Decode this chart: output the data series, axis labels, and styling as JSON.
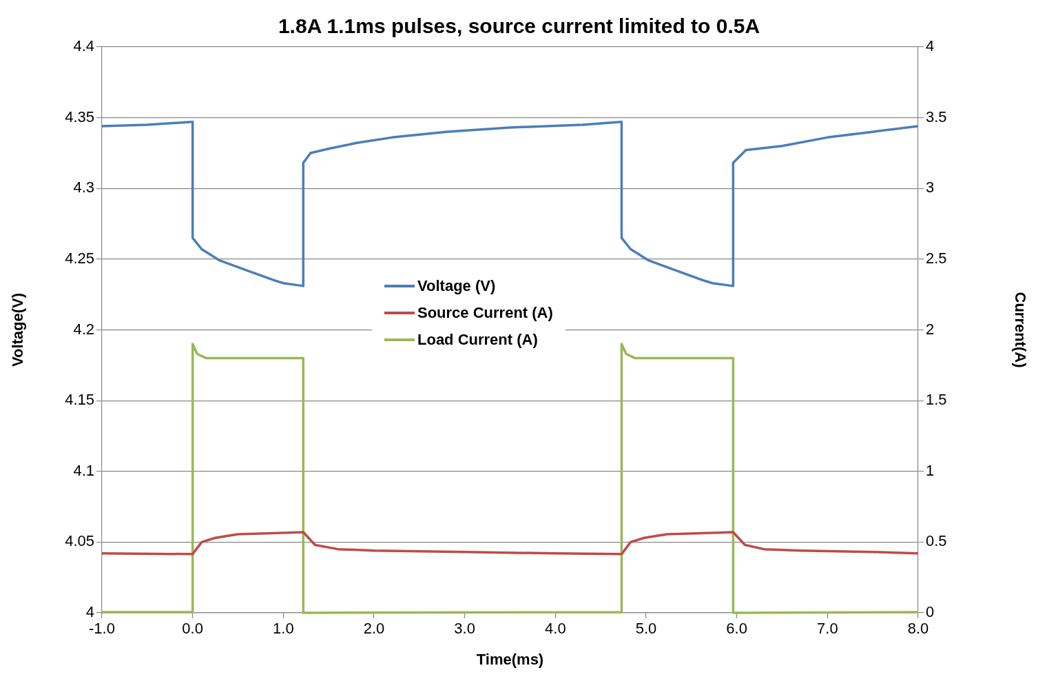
{
  "chart_data": {
    "type": "line",
    "title": "1.8A 1.1ms pulses, source current limited to 0.5A",
    "xlabel": "Time(ms)",
    "ylabel": "Voltage(V)",
    "y2label": "Current(A)",
    "xlim": [
      -1,
      8
    ],
    "xticks": [
      {
        "value": -1,
        "label": "-1.0"
      },
      {
        "value": 0,
        "label": "0.0"
      },
      {
        "value": 1,
        "label": "1.0"
      },
      {
        "value": 2,
        "label": "2.0"
      },
      {
        "value": 3,
        "label": "3.0"
      },
      {
        "value": 4,
        "label": "4.0"
      },
      {
        "value": 5,
        "label": "5.0"
      },
      {
        "value": 6,
        "label": "6.0"
      },
      {
        "value": 7,
        "label": "7.0"
      },
      {
        "value": 8,
        "label": "8.0"
      }
    ],
    "ylim": [
      4,
      4.4
    ],
    "yticks": [
      4,
      4.05,
      4.1,
      4.15,
      4.2,
      4.25,
      4.3,
      4.35,
      4.4
    ],
    "y2lim": [
      0,
      4
    ],
    "y2ticks": [
      0,
      0.5,
      1,
      1.5,
      2,
      2.5,
      3,
      3.5,
      4
    ],
    "grid": "y",
    "legend": "center",
    "marker": "none",
    "line_style": "solid",
    "series": [
      {
        "name": "Voltage (V)",
        "color": "#4a7ebb",
        "x": [
          -1,
          -0.5,
          0,
          0,
          0.1,
          0.3,
          0.6,
          0.9,
          1.0,
          1.22,
          1.22,
          1.3,
          1.5,
          1.8,
          2.2,
          2.8,
          3.5,
          4.3,
          4.73,
          4.73,
          4.83,
          5.03,
          5.33,
          5.63,
          5.73,
          5.96,
          5.96,
          6.1,
          6.5,
          7.0,
          7.5,
          8.0
        ],
        "values": [
          4.344,
          4.345,
          4.347,
          4.265,
          4.257,
          4.249,
          4.242,
          4.235,
          4.233,
          4.231,
          4.318,
          4.325,
          4.328,
          4.332,
          4.336,
          4.34,
          4.343,
          4.345,
          4.347,
          4.265,
          4.257,
          4.249,
          4.242,
          4.235,
          4.233,
          4.231,
          4.318,
          4.327,
          4.33,
          4.336,
          4.34,
          4.344
        ]
      },
      {
        "name": "Source Current (A)",
        "color": "#be4b48",
        "axis": "y2",
        "x": [
          -1,
          0,
          0.1,
          0.25,
          0.5,
          1.0,
          1.22,
          1.35,
          1.6,
          2.0,
          3.0,
          4.0,
          4.73,
          4.83,
          4.98,
          5.23,
          5.73,
          5.96,
          6.09,
          6.3,
          6.7,
          7.5,
          8.0
        ],
        "values": [
          0.42,
          0.415,
          0.5,
          0.53,
          0.555,
          0.565,
          0.57,
          0.48,
          0.45,
          0.44,
          0.43,
          0.42,
          0.415,
          0.5,
          0.53,
          0.555,
          0.565,
          0.57,
          0.48,
          0.45,
          0.44,
          0.43,
          0.42
        ]
      },
      {
        "name": "Load Current (A)",
        "color": "#98b954",
        "axis": "y2",
        "x": [
          -1,
          0,
          0,
          0.05,
          0.15,
          1.22,
          1.22,
          4.73,
          4.73,
          4.78,
          4.88,
          5.96,
          5.96,
          8.0
        ],
        "values": [
          0.005,
          0.005,
          1.9,
          1.83,
          1.8,
          1.8,
          0,
          0.005,
          1.9,
          1.83,
          1.8,
          1.8,
          0,
          0.005
        ]
      }
    ]
  }
}
